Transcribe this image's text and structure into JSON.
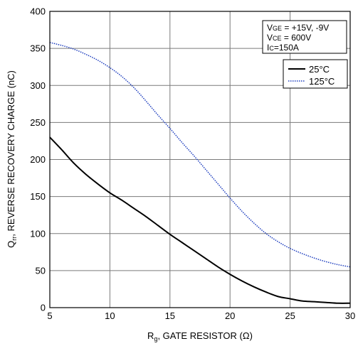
{
  "chart_data": {
    "type": "line",
    "xlabel_main": "R",
    "xlabel_sub": "g",
    "xlabel_rest": ", GATE RESISTOR (Ω)",
    "ylabel_main": "Q",
    "ylabel_sub": "rr",
    "ylabel_rest": ", REVERSE RECOVERY CHARGE (nC)",
    "xlim": [
      5,
      30
    ],
    "ylim": [
      0,
      400
    ],
    "x_ticks": [
      "5",
      "10",
      "15",
      "20",
      "25",
      "30"
    ],
    "y_ticks": [
      "0",
      "50",
      "100",
      "150",
      "200",
      "250",
      "300",
      "350",
      "400"
    ],
    "grid": true,
    "conditions": [
      {
        "main": "V",
        "sub": "GE",
        "rest": " = +15V, -9V"
      },
      {
        "main": "V",
        "sub": "CE",
        "rest": " = 600V"
      },
      {
        "main": "I",
        "sub": "C",
        "rest": "=150A"
      }
    ],
    "legend_position": "top-right",
    "series": [
      {
        "name": "25°C",
        "color": "#000000",
        "style": "solid",
        "x": [
          5,
          6,
          7,
          8,
          9,
          10,
          11,
          12,
          13,
          14,
          15,
          16,
          17,
          18,
          19,
          20,
          21,
          22,
          23,
          24,
          25,
          26,
          27,
          28,
          29,
          30
        ],
        "y": [
          230,
          213,
          195,
          180,
          167,
          155,
          145,
          134,
          123,
          111,
          99,
          88,
          77,
          66,
          55,
          45,
          36,
          28,
          21,
          15,
          12,
          9,
          8,
          7,
          6,
          6
        ]
      },
      {
        "name": "125°C",
        "color": "#1f3fbf",
        "style": "dotted",
        "x": [
          5,
          6,
          7,
          8,
          9,
          10,
          11,
          12,
          13,
          14,
          15,
          16,
          17,
          18,
          19,
          20,
          21,
          22,
          23,
          24,
          25,
          26,
          27,
          28,
          29,
          30
        ],
        "y": [
          358,
          354,
          349,
          342,
          334,
          324,
          312,
          297,
          279,
          260,
          242,
          223,
          205,
          186,
          167,
          148,
          130,
          114,
          100,
          89,
          80,
          73,
          67,
          62,
          58,
          55
        ]
      }
    ]
  }
}
